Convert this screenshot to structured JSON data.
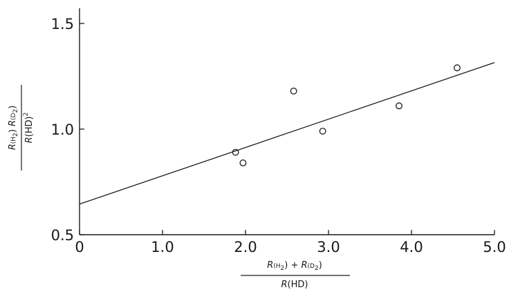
{
  "chart_data": {
    "type": "scatter",
    "title": "",
    "x": [
      1.88,
      1.97,
      2.58,
      2.93,
      3.85,
      4.55
    ],
    "y": [
      0.89,
      0.84,
      1.18,
      0.99,
      1.11,
      1.29
    ],
    "fit_line": {
      "x": [
        0.0,
        5.0
      ],
      "y": [
        0.645,
        1.315
      ]
    },
    "xlim": [
      0,
      5.0
    ],
    "ylim": [
      0.5,
      1.6
    ],
    "xticks": [
      "0",
      "1.0",
      "2.0",
      "3.0",
      "4.0",
      "5.0"
    ],
    "xtick_values": [
      0,
      1,
      2,
      3,
      4,
      5
    ],
    "yticks": [
      "0.5",
      "1.0",
      "1.5"
    ],
    "ytick_values": [
      0.5,
      1.0,
      1.5
    ],
    "xlabel": {
      "numerator": [
        "R",
        "(H",
        "2",
        ") + ",
        "R",
        "(D",
        "2",
        ")"
      ],
      "denominator": [
        "R",
        "(HD)"
      ]
    },
    "ylabel": {
      "numerator": [
        "R",
        "(H",
        "2",
        ") ",
        "R",
        "(D",
        "2",
        ")"
      ],
      "denominator": [
        "R",
        "(HD)",
        "2"
      ]
    },
    "grid": false,
    "marker": "open-circle"
  }
}
